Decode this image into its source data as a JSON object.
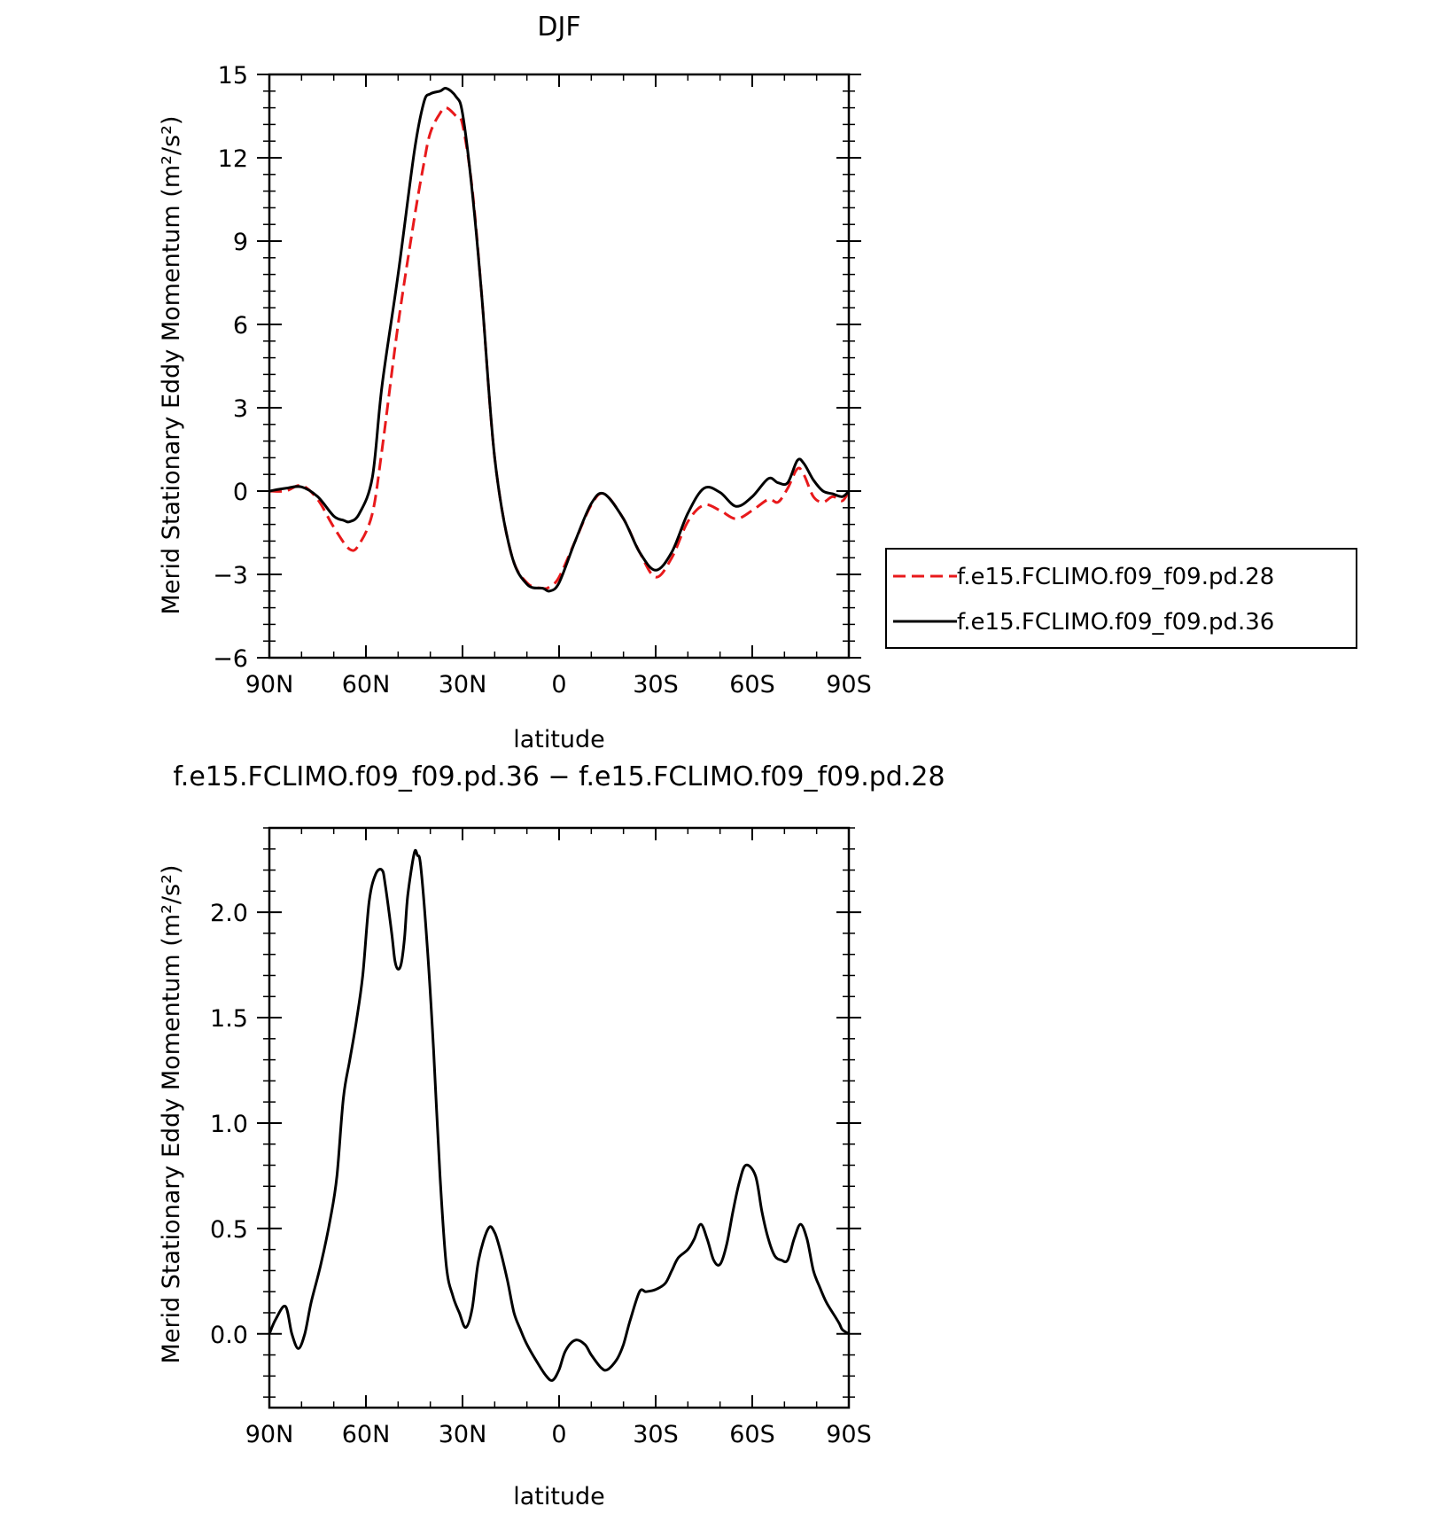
{
  "chart_data": [
    {
      "type": "line",
      "title": "DJF",
      "xlabel": "latitude",
      "ylabel": "Merid Stationary Eddy Momentum (m²/s²)",
      "xlim": [
        90,
        -90
      ],
      "ylim": [
        -6,
        15
      ],
      "xticks": [
        90,
        60,
        30,
        0,
        -30,
        -60,
        -90
      ],
      "xtick_labels": [
        "90N",
        "60N",
        "30N",
        "0",
        "30S",
        "60S",
        "90S"
      ],
      "yticks": [
        -6,
        -3,
        0,
        3,
        6,
        9,
        12,
        15
      ],
      "ytick_labels": [
        "−6",
        "−3",
        "0",
        "3",
        "6",
        "9",
        "12",
        "15"
      ],
      "grid": false,
      "legend": "right",
      "series": [
        {
          "name": "f.e15.FCLIMO.f09_f09.pd.28",
          "color": "#e8191b",
          "dash": true,
          "x": [
            90,
            85,
            80,
            75,
            70,
            65,
            62,
            58,
            55,
            50,
            45,
            42,
            40,
            37,
            35,
            32,
            30,
            27,
            24,
            20,
            15,
            10,
            5,
            3,
            0,
            -5,
            -10,
            -14,
            -20,
            -25,
            -30,
            -35,
            -40,
            -45,
            -50,
            -55,
            -60,
            -65,
            -68,
            -71,
            -74,
            -76,
            -79,
            -82,
            -85,
            -88,
            -90
          ],
          "y": [
            0,
            0,
            0.2,
            -0.3,
            -1.3,
            -2.1,
            -1.9,
            -0.8,
            1.5,
            6.0,
            9.8,
            11.8,
            12.9,
            13.6,
            13.8,
            13.5,
            13.2,
            10.9,
            7.0,
            1.2,
            -2.2,
            -3.3,
            -3.5,
            -3.45,
            -3.1,
            -1.8,
            -0.5,
            -0.1,
            -1.0,
            -2.2,
            -3.1,
            -2.4,
            -1.1,
            -0.5,
            -0.7,
            -1.0,
            -0.7,
            -0.3,
            -0.4,
            0.1,
            0.8,
            0.6,
            -0.2,
            -0.4,
            -0.2,
            -0.35,
            0
          ]
        },
        {
          "name": "f.e15.FCLIMO.f09_f09.pd.36",
          "color": "#000000",
          "dash": false,
          "x": [
            90,
            85,
            80,
            75,
            70,
            67,
            65,
            62,
            58,
            55,
            50,
            45,
            42,
            40,
            37,
            35,
            32,
            30,
            27,
            24,
            20,
            15,
            10,
            5,
            3,
            0,
            -5,
            -10,
            -14,
            -20,
            -25,
            -30,
            -35,
            -40,
            -45,
            -50,
            -55,
            -60,
            -65,
            -68,
            -71,
            -74,
            -76,
            -79,
            -82,
            -85,
            -88,
            -90
          ],
          "y": [
            0,
            0.1,
            0.15,
            -0.2,
            -0.9,
            -1.05,
            -1.1,
            -0.8,
            0.5,
            3.8,
            7.8,
            12.2,
            14.0,
            14.3,
            14.4,
            14.5,
            14.2,
            13.6,
            10.8,
            7.0,
            1.2,
            -2.2,
            -3.35,
            -3.5,
            -3.6,
            -3.3,
            -1.8,
            -0.45,
            -0.1,
            -1.0,
            -2.2,
            -2.85,
            -2.2,
            -0.8,
            0.1,
            -0.05,
            -0.55,
            -0.2,
            0.45,
            0.3,
            0.3,
            1.1,
            1.0,
            0.4,
            0.0,
            -0.1,
            -0.2,
            0
          ]
        }
      ]
    },
    {
      "type": "line",
      "title": "f.e15.FCLIMO.f09_f09.pd.36 − f.e15.FCLIMO.f09_f09.pd.28",
      "xlabel": "latitude",
      "ylabel": "Merid Stationary Eddy Momentum (m²/s²)",
      "xlim": [
        90,
        -90
      ],
      "ylim": [
        -0.35,
        2.4
      ],
      "xticks": [
        90,
        60,
        30,
        0,
        -30,
        -60,
        -90
      ],
      "xtick_labels": [
        "90N",
        "60N",
        "30N",
        "0",
        "30S",
        "60S",
        "90S"
      ],
      "yticks": [
        0,
        0.5,
        1.0,
        1.5,
        2.0
      ],
      "ytick_labels": [
        "0.0",
        "0.5",
        "1.0",
        "1.5",
        "2.0"
      ],
      "grid": false,
      "series": [
        {
          "name": "",
          "color": "#000000",
          "dash": false,
          "x": [
            90,
            88,
            85,
            83,
            81,
            79,
            77,
            74,
            71,
            69,
            67,
            65,
            63,
            61,
            59,
            57,
            55,
            54,
            52,
            51,
            50,
            49,
            48,
            47,
            45,
            44,
            43,
            41,
            39,
            37,
            35,
            33,
            31,
            29,
            27,
            25,
            22,
            20,
            18,
            16,
            14,
            12,
            10,
            7,
            4,
            2,
            0,
            -2,
            -5,
            -8,
            -10,
            -13,
            -15,
            -18,
            -20,
            -22,
            -25,
            -27,
            -30,
            -33,
            -35,
            -37,
            -40,
            -42,
            -44,
            -46,
            -48,
            -50,
            -52,
            -54,
            -56,
            -58,
            -61,
            -63,
            -65,
            -67,
            -69,
            -71,
            -73,
            -75,
            -77,
            -79,
            -81,
            -83,
            -85,
            -87,
            -88,
            -90
          ],
          "y": [
            0,
            0.07,
            0.13,
            0.0,
            -0.07,
            0.0,
            0.15,
            0.33,
            0.55,
            0.75,
            1.12,
            1.3,
            1.48,
            1.7,
            2.05,
            2.18,
            2.2,
            2.13,
            1.9,
            1.77,
            1.73,
            1.76,
            1.88,
            2.08,
            2.28,
            2.27,
            2.22,
            1.85,
            1.35,
            0.75,
            0.32,
            0.18,
            0.1,
            0.03,
            0.12,
            0.35,
            0.5,
            0.48,
            0.38,
            0.25,
            0.1,
            0.02,
            -0.05,
            -0.13,
            -0.2,
            -0.22,
            -0.17,
            -0.08,
            -0.03,
            -0.05,
            -0.1,
            -0.16,
            -0.17,
            -0.12,
            -0.05,
            0.06,
            0.2,
            0.2,
            0.21,
            0.24,
            0.3,
            0.36,
            0.4,
            0.45,
            0.52,
            0.45,
            0.35,
            0.33,
            0.42,
            0.58,
            0.72,
            0.8,
            0.75,
            0.58,
            0.45,
            0.37,
            0.35,
            0.35,
            0.45,
            0.52,
            0.45,
            0.3,
            0.22,
            0.15,
            0.1,
            0.05,
            0.02,
            0
          ]
        }
      ]
    }
  ]
}
